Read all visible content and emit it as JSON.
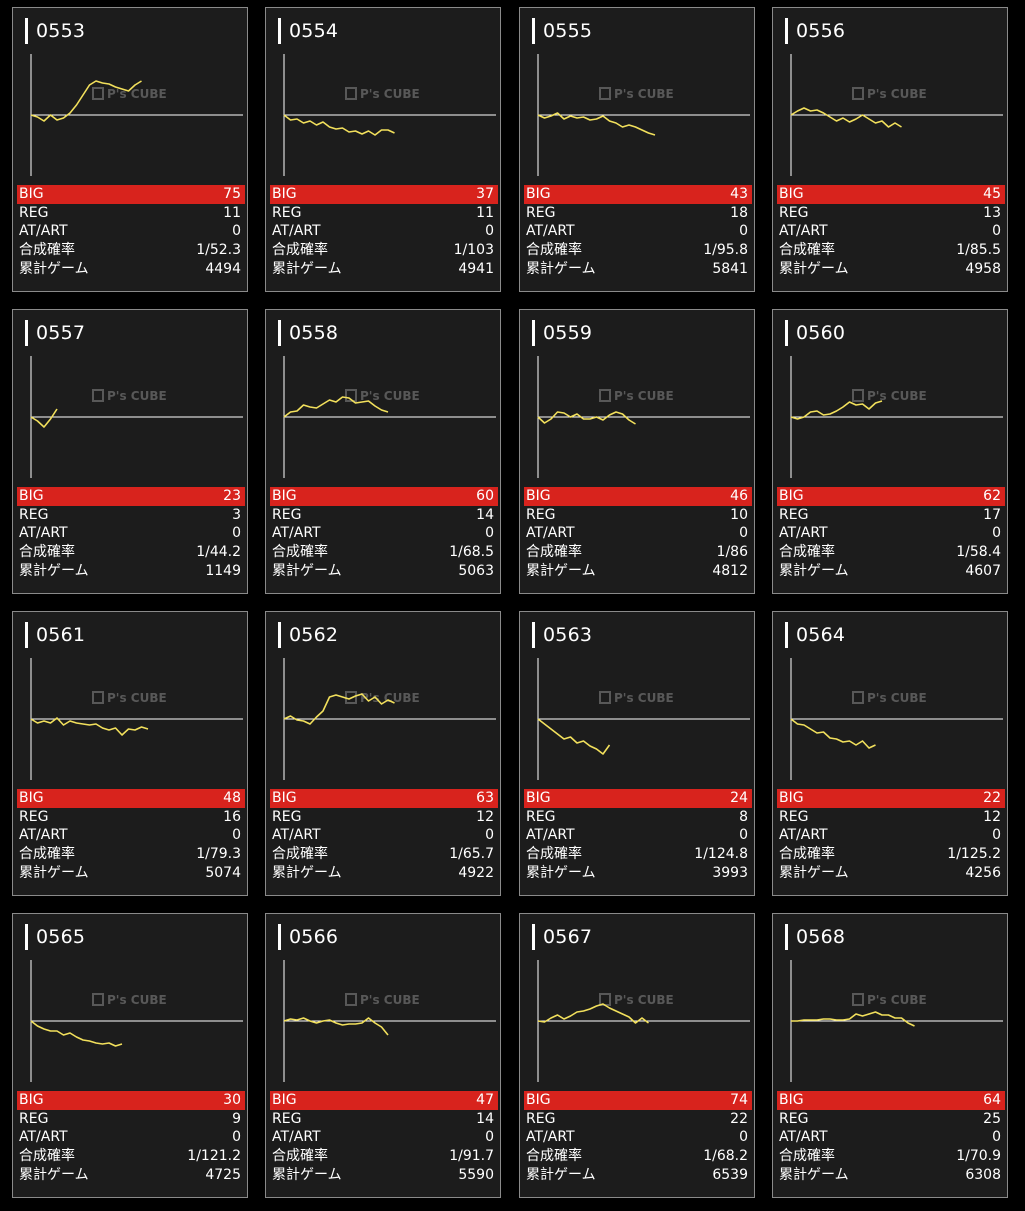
{
  "labels": {
    "big": "BIG",
    "reg": "REG",
    "at": "AT/ART",
    "prob": "合成確率",
    "games": "累計ゲーム",
    "watermark": "P's CUBE"
  },
  "colors": {
    "background": "#000000",
    "card": "#1c1c1c",
    "big_bar": "#d8231d",
    "graph_line": "#f2e05c",
    "axis": "#ffffff"
  },
  "chart_data": [
    {
      "type": "line",
      "machine": "0553",
      "values": [
        0,
        -2,
        -6,
        0,
        -5,
        -3,
        2,
        10,
        20,
        30,
        34,
        32,
        31,
        28,
        26,
        24,
        30,
        34
      ]
    },
    {
      "type": "line",
      "machine": "0554",
      "values": [
        0,
        -5,
        -4,
        -8,
        -6,
        -10,
        -7,
        -12,
        -14,
        -13,
        -17,
        -16,
        -19,
        -16,
        -20,
        -15,
        -15,
        -18
      ]
    },
    {
      "type": "line",
      "machine": "0555",
      "values": [
        0,
        -3,
        -1,
        2,
        -4,
        -1,
        -3,
        -2,
        -5,
        -4,
        -1,
        -6,
        -8,
        -12,
        -10,
        -12,
        -15,
        -18,
        -20
      ]
    },
    {
      "type": "line",
      "machine": "0556",
      "values": [
        0,
        4,
        7,
        4,
        5,
        2,
        -2,
        -6,
        -3,
        -7,
        -4,
        0,
        -4,
        -8,
        -6,
        -12,
        -8,
        -12
      ]
    },
    {
      "type": "line",
      "machine": "0557",
      "values": [
        0,
        -4,
        -10,
        -2,
        8
      ]
    },
    {
      "type": "line",
      "machine": "0558",
      "values": [
        0,
        5,
        6,
        12,
        10,
        9,
        13,
        17,
        15,
        20,
        19,
        14,
        15,
        16,
        11,
        7,
        5
      ]
    },
    {
      "type": "line",
      "machine": "0559",
      "values": [
        0,
        -6,
        -2,
        5,
        4,
        0,
        3,
        -2,
        -2,
        0,
        -3,
        2,
        5,
        3,
        -3,
        -7
      ]
    },
    {
      "type": "line",
      "machine": "0560",
      "values": [
        0,
        -2,
        0,
        5,
        6,
        2,
        3,
        6,
        10,
        15,
        12,
        13,
        8,
        14,
        16
      ]
    },
    {
      "type": "line",
      "machine": "0561",
      "values": [
        0,
        -4,
        -2,
        -4,
        1,
        -6,
        -2,
        -4,
        -5,
        -6,
        -5,
        -9,
        -11,
        -9,
        -16,
        -10,
        -11,
        -8,
        -10
      ]
    },
    {
      "type": "line",
      "machine": "0562",
      "values": [
        0,
        3,
        -1,
        -2,
        -5,
        2,
        8,
        22,
        24,
        22,
        20,
        23,
        25,
        18,
        22,
        15,
        19,
        16
      ]
    },
    {
      "type": "line",
      "machine": "0563",
      "values": [
        0,
        -5,
        -10,
        -15,
        -20,
        -18,
        -24,
        -22,
        -27,
        -30,
        -35,
        -26
      ]
    },
    {
      "type": "line",
      "machine": "0564",
      "values": [
        0,
        -5,
        -6,
        -10,
        -14,
        -13,
        -19,
        -20,
        -23,
        -22,
        -26,
        -22,
        -29,
        -26
      ]
    },
    {
      "type": "line",
      "machine": "0565",
      "values": [
        0,
        -5,
        -8,
        -10,
        -10,
        -14,
        -12,
        -16,
        -19,
        -20,
        -22,
        -23,
        -22,
        -25,
        -23
      ]
    },
    {
      "type": "line",
      "machine": "0566",
      "values": [
        0,
        2,
        1,
        3,
        0,
        -2,
        0,
        1,
        -2,
        -4,
        -3,
        -3,
        -2,
        3,
        -2,
        -6,
        -14
      ]
    },
    {
      "type": "line",
      "machine": "0567",
      "values": [
        0,
        -1,
        3,
        6,
        2,
        5,
        9,
        10,
        12,
        15,
        17,
        13,
        10,
        7,
        4,
        -2,
        3,
        -2
      ]
    },
    {
      "type": "line",
      "machine": "0568",
      "values": [
        0,
        0,
        1,
        1,
        1,
        2,
        2,
        1,
        1,
        2,
        7,
        5,
        7,
        9,
        6,
        6,
        3,
        3,
        -2,
        -5
      ]
    }
  ],
  "machines": [
    {
      "num": "0553",
      "big": "75",
      "reg": "11",
      "at": "0",
      "prob": "1/52.3",
      "games": "4494"
    },
    {
      "num": "0554",
      "big": "37",
      "reg": "11",
      "at": "0",
      "prob": "1/103",
      "games": "4941"
    },
    {
      "num": "0555",
      "big": "43",
      "reg": "18",
      "at": "0",
      "prob": "1/95.8",
      "games": "5841"
    },
    {
      "num": "0556",
      "big": "45",
      "reg": "13",
      "at": "0",
      "prob": "1/85.5",
      "games": "4958"
    },
    {
      "num": "0557",
      "big": "23",
      "reg": "3",
      "at": "0",
      "prob": "1/44.2",
      "games": "1149"
    },
    {
      "num": "0558",
      "big": "60",
      "reg": "14",
      "at": "0",
      "prob": "1/68.5",
      "games": "5063"
    },
    {
      "num": "0559",
      "big": "46",
      "reg": "10",
      "at": "0",
      "prob": "1/86",
      "games": "4812"
    },
    {
      "num": "0560",
      "big": "62",
      "reg": "17",
      "at": "0",
      "prob": "1/58.4",
      "games": "4607"
    },
    {
      "num": "0561",
      "big": "48",
      "reg": "16",
      "at": "0",
      "prob": "1/79.3",
      "games": "5074"
    },
    {
      "num": "0562",
      "big": "63",
      "reg": "12",
      "at": "0",
      "prob": "1/65.7",
      "games": "4922"
    },
    {
      "num": "0563",
      "big": "24",
      "reg": "8",
      "at": "0",
      "prob": "1/124.8",
      "games": "3993"
    },
    {
      "num": "0564",
      "big": "22",
      "reg": "12",
      "at": "0",
      "prob": "1/125.2",
      "games": "4256"
    },
    {
      "num": "0565",
      "big": "30",
      "reg": "9",
      "at": "0",
      "prob": "1/121.2",
      "games": "4725"
    },
    {
      "num": "0566",
      "big": "47",
      "reg": "14",
      "at": "0",
      "prob": "1/91.7",
      "games": "5590"
    },
    {
      "num": "0567",
      "big": "74",
      "reg": "22",
      "at": "0",
      "prob": "1/68.2",
      "games": "6539"
    },
    {
      "num": "0568",
      "big": "64",
      "reg": "25",
      "at": "0",
      "prob": "1/70.9",
      "games": "6308"
    }
  ]
}
